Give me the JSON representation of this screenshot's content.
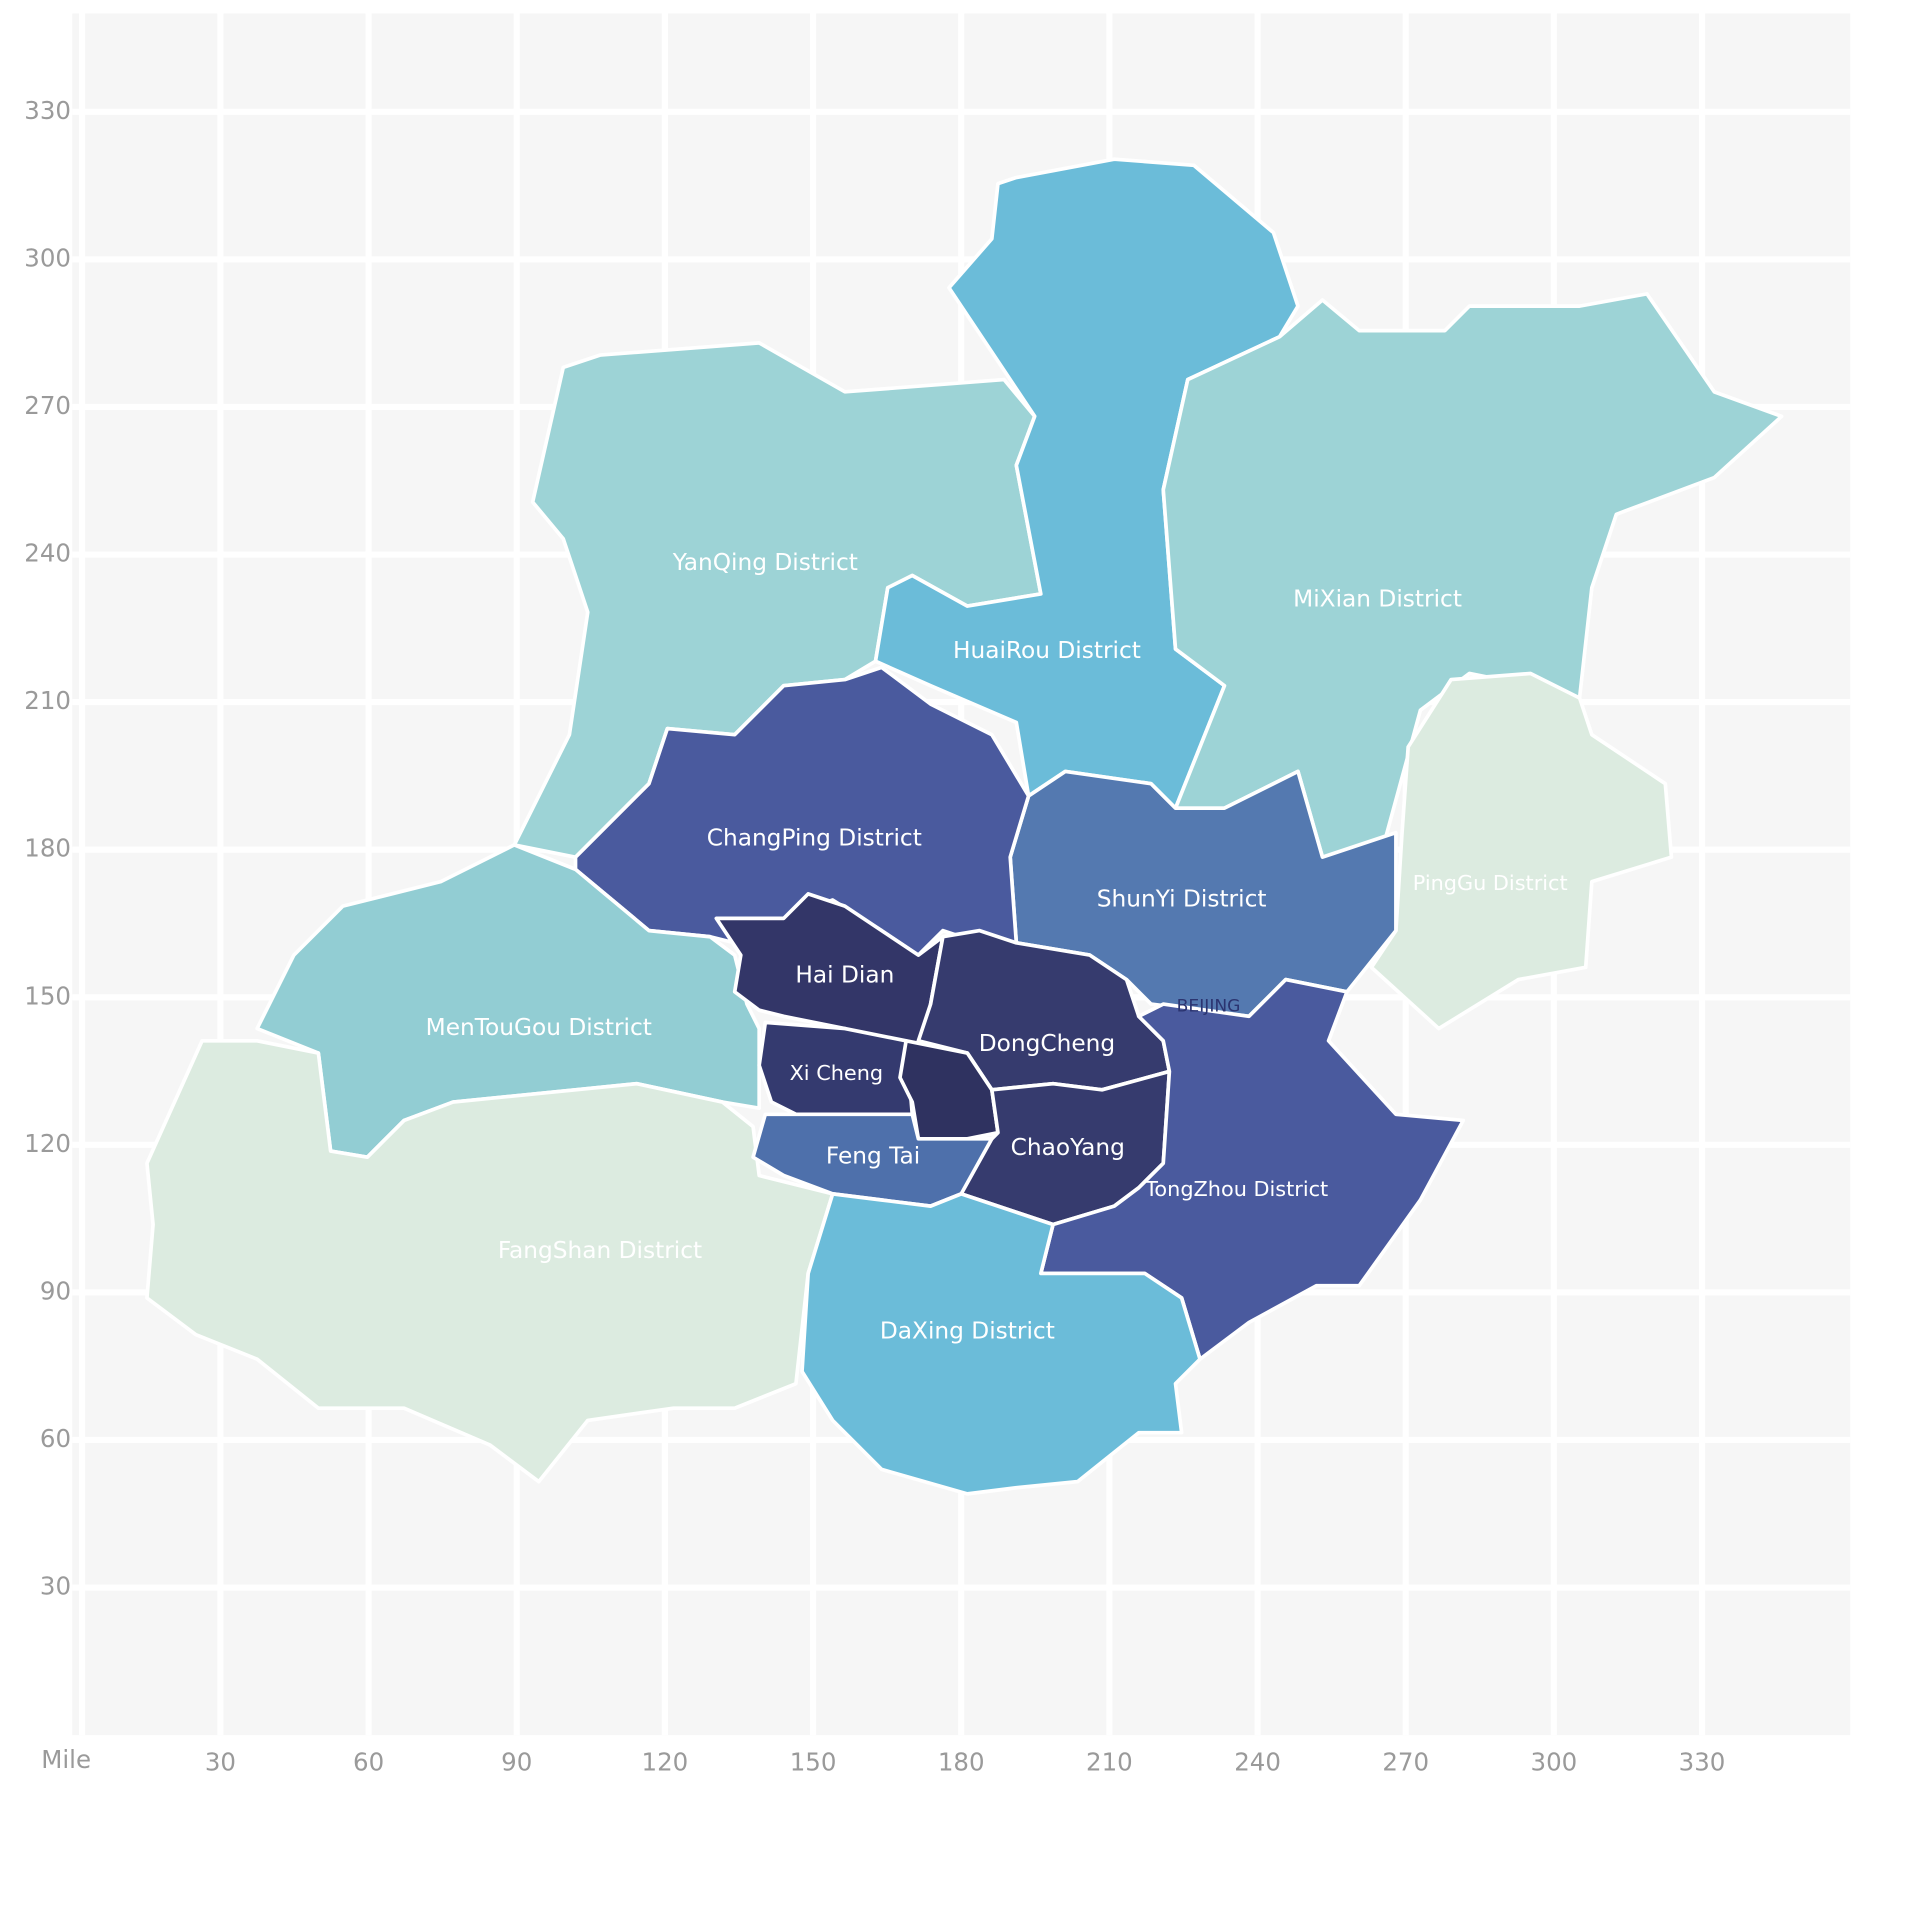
{
  "chart_data": {
    "type": "map",
    "xlabel": "Mile",
    "xlim": [
      0,
      360
    ],
    "ylim": [
      0,
      350
    ],
    "xticks": [
      30,
      60,
      90,
      120,
      150,
      180,
      210,
      240,
      270,
      300,
      330
    ],
    "yticks": [
      30,
      60,
      90,
      120,
      150,
      180,
      210,
      240,
      270,
      300,
      330
    ],
    "grid": true,
    "regions": [
      {
        "name": "YanQing District",
        "color": "#9dd3d6"
      },
      {
        "name": "HuaiRou District",
        "color": "#6bbcd9"
      },
      {
        "name": "MiXian District",
        "color": "#9dd3d6"
      },
      {
        "name": "PingGu District",
        "color": "#dcebe0"
      },
      {
        "name": "ShunYi District",
        "color": "#5479b0"
      },
      {
        "name": "ChangPing District",
        "color": "#4a5a9e"
      },
      {
        "name": "MenTouGou District",
        "color": "#92cdd3"
      },
      {
        "name": "FangShan District",
        "color": "#dcebe0"
      },
      {
        "name": "Hai Dian",
        "color": "#333668"
      },
      {
        "name": "Xi Cheng",
        "color": "#343a6f"
      },
      {
        "name": "DongCheng",
        "color": "#363b6e"
      },
      {
        "name": "ChaoYang",
        "color": "#363b6e"
      },
      {
        "name": "Feng Tai",
        "color": "#4e70ab"
      },
      {
        "name": "TongZhou District",
        "color": "#4a5a9e"
      },
      {
        "name": "DaXing District",
        "color": "#6bbcd9"
      }
    ],
    "annotations": [
      "BEIJING"
    ]
  }
}
